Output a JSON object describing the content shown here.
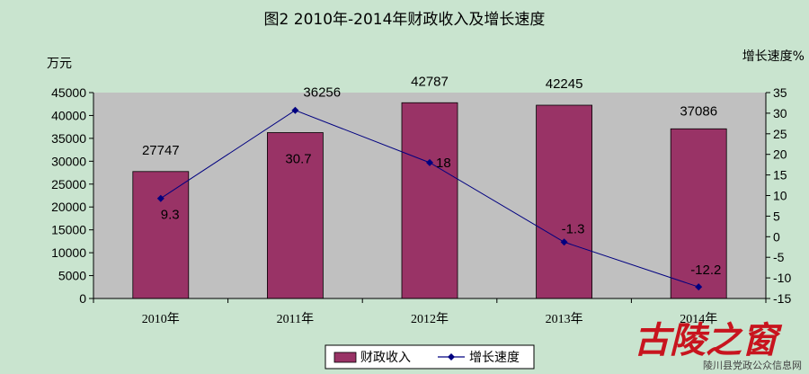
{
  "chart_data": {
    "type": "bar+line",
    "title": "图2   2010年-2014年财政收入及增长速度",
    "ylabel_left": "万元",
    "ylabel_right": "增长速度%",
    "categories": [
      "2010年",
      "2011年",
      "2012年",
      "2013年",
      "2014年"
    ],
    "series": [
      {
        "name": "财政收入",
        "type": "bar",
        "axis": "left",
        "color": "#993366",
        "values": [
          27747,
          36256,
          42787,
          42245,
          37086
        ]
      },
      {
        "name": "增长速度",
        "type": "line",
        "axis": "right",
        "color": "#000080",
        "values": [
          9.3,
          30.7,
          18,
          -1.3,
          -12.2
        ]
      }
    ],
    "ylim_left": [
      0,
      45000
    ],
    "yticks_left": [
      0,
      5000,
      10000,
      15000,
      20000,
      25000,
      30000,
      35000,
      40000,
      45000
    ],
    "ylim_right": [
      -15,
      35
    ],
    "yticks_right": [
      -15,
      -10,
      -5,
      0,
      5,
      10,
      15,
      20,
      25,
      30,
      35
    ],
    "grid": false,
    "plot_background": "#c0c0c0",
    "legend_position": "bottom"
  },
  "watermark": {
    "logo_text": "古陵之窗",
    "caption": "陵川县党政公众信息网"
  }
}
